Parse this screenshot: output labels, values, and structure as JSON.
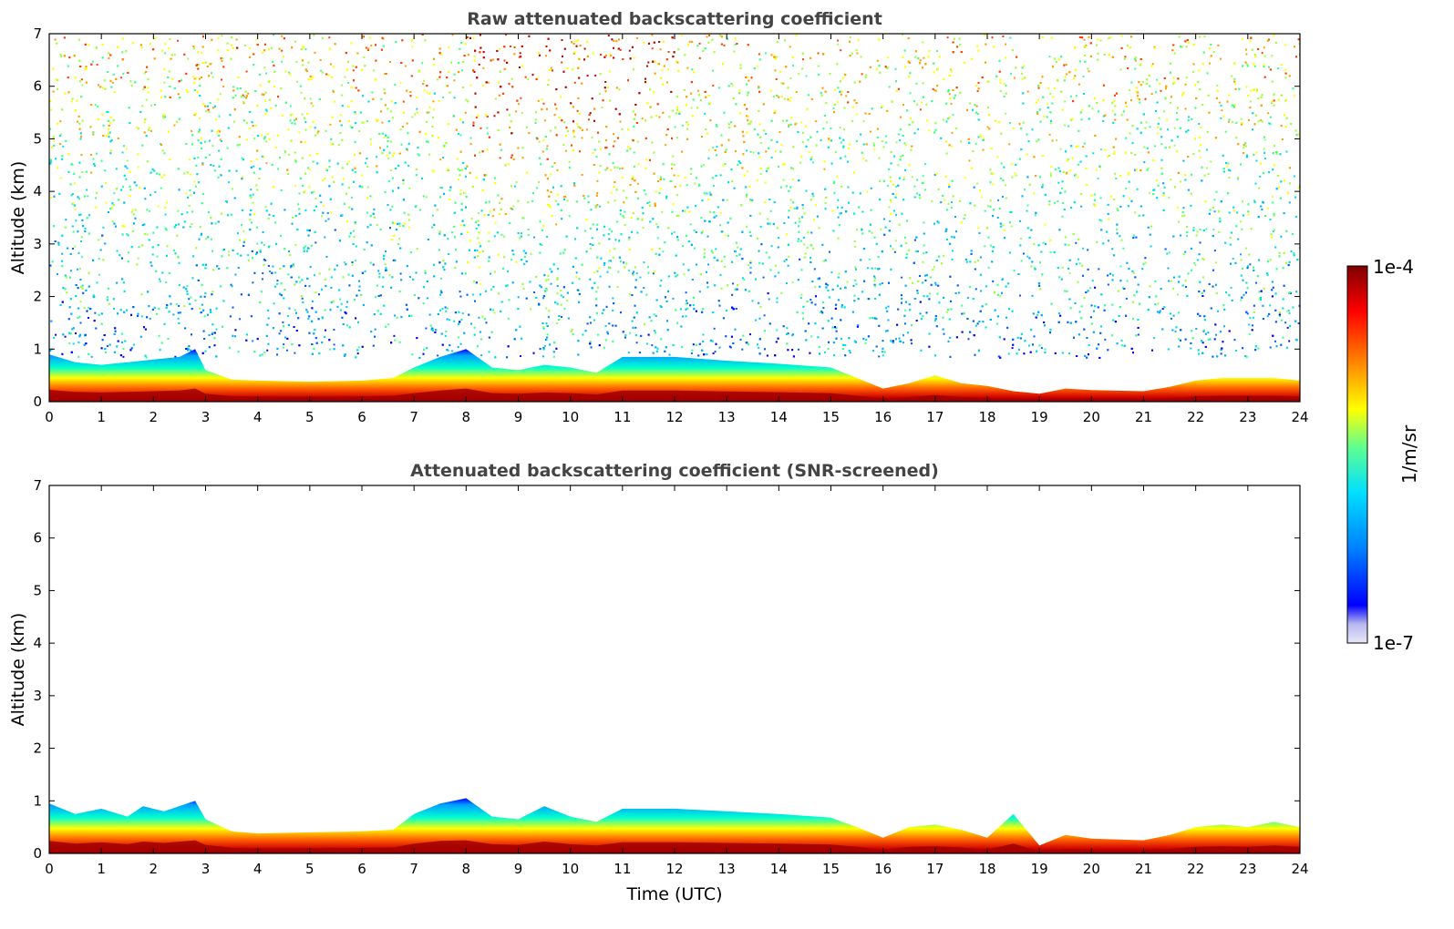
{
  "chart_data": [
    {
      "type": "heatmap",
      "title": "Raw attenuated backscattering coefficient",
      "ylabel": "Altitude (km)",
      "xlabel": "",
      "xlim": [
        0,
        24
      ],
      "ylim": [
        0,
        7
      ],
      "xticks": [
        "0",
        "1",
        "2",
        "3",
        "4",
        "5",
        "6",
        "7",
        "8",
        "9",
        "10",
        "11",
        "12",
        "13",
        "14",
        "15",
        "16",
        "17",
        "18",
        "19",
        "20",
        "21",
        "22",
        "23",
        "24"
      ],
      "yticks": [
        "0",
        "1",
        "2",
        "3",
        "4",
        "5",
        "6",
        "7"
      ],
      "boundary_layer_top_km": [
        [
          0,
          0.9
        ],
        [
          0.5,
          0.75
        ],
        [
          1,
          0.7
        ],
        [
          1.5,
          0.75
        ],
        [
          2,
          0.8
        ],
        [
          2.5,
          0.85
        ],
        [
          2.8,
          1.0
        ],
        [
          3,
          0.6
        ],
        [
          3.5,
          0.42
        ],
        [
          4,
          0.4
        ],
        [
          5,
          0.38
        ],
        [
          6,
          0.4
        ],
        [
          6.6,
          0.45
        ],
        [
          7,
          0.65
        ],
        [
          7.5,
          0.85
        ],
        [
          8,
          1.0
        ],
        [
          8.5,
          0.65
        ],
        [
          9,
          0.6
        ],
        [
          9.5,
          0.7
        ],
        [
          10,
          0.65
        ],
        [
          10.5,
          0.55
        ],
        [
          11,
          0.85
        ],
        [
          12,
          0.85
        ],
        [
          13,
          0.78
        ],
        [
          14,
          0.72
        ],
        [
          15,
          0.65
        ],
        [
          15.5,
          0.45
        ],
        [
          16,
          0.25
        ],
        [
          16.5,
          0.35
        ],
        [
          17,
          0.5
        ],
        [
          17.5,
          0.35
        ],
        [
          18,
          0.3
        ],
        [
          18.5,
          0.2
        ],
        [
          19,
          0.15
        ],
        [
          19.5,
          0.25
        ],
        [
          20,
          0.22
        ],
        [
          21,
          0.2
        ],
        [
          21.5,
          0.28
        ],
        [
          22,
          0.4
        ],
        [
          22.5,
          0.45
        ],
        [
          23,
          0.45
        ],
        [
          23.5,
          0.45
        ],
        [
          24,
          0.4
        ]
      ],
      "noise_lower_limit_km": 1.0,
      "noise_strongest_hours": [
        8,
        12
      ]
    },
    {
      "type": "heatmap",
      "title": "Attenuated backscattering coefficient (SNR-screened)",
      "ylabel": "Altitude (km)",
      "xlabel": "Time (UTC)",
      "xlim": [
        0,
        24
      ],
      "ylim": [
        0,
        7
      ],
      "xticks": [
        "0",
        "1",
        "2",
        "3",
        "4",
        "5",
        "6",
        "7",
        "8",
        "9",
        "10",
        "11",
        "12",
        "13",
        "14",
        "15",
        "16",
        "17",
        "18",
        "19",
        "20",
        "21",
        "22",
        "23",
        "24"
      ],
      "yticks": [
        "0",
        "1",
        "2",
        "3",
        "4",
        "5",
        "6",
        "7"
      ],
      "boundary_layer_top_km": [
        [
          0,
          0.95
        ],
        [
          0.5,
          0.75
        ],
        [
          1,
          0.85
        ],
        [
          1.5,
          0.7
        ],
        [
          1.8,
          0.9
        ],
        [
          2.2,
          0.8
        ],
        [
          2.8,
          1.0
        ],
        [
          3,
          0.65
        ],
        [
          3.5,
          0.42
        ],
        [
          4,
          0.38
        ],
        [
          5,
          0.4
        ],
        [
          6,
          0.42
        ],
        [
          6.6,
          0.45
        ],
        [
          7,
          0.75
        ],
        [
          7.5,
          0.95
        ],
        [
          8,
          1.05
        ],
        [
          8.5,
          0.7
        ],
        [
          9,
          0.65
        ],
        [
          9.5,
          0.9
        ],
        [
          10,
          0.7
        ],
        [
          10.5,
          0.6
        ],
        [
          11,
          0.85
        ],
        [
          12,
          0.85
        ],
        [
          13,
          0.8
        ],
        [
          14,
          0.75
        ],
        [
          15,
          0.68
        ],
        [
          15.5,
          0.5
        ],
        [
          16,
          0.3
        ],
        [
          16.5,
          0.5
        ],
        [
          17,
          0.55
        ],
        [
          17.5,
          0.45
        ],
        [
          18,
          0.3
        ],
        [
          18.5,
          0.75
        ],
        [
          19,
          0.15
        ],
        [
          19.5,
          0.35
        ],
        [
          20,
          0.28
        ],
        [
          21,
          0.25
        ],
        [
          21.5,
          0.35
        ],
        [
          22,
          0.5
        ],
        [
          22.5,
          0.55
        ],
        [
          23,
          0.5
        ],
        [
          23.5,
          0.6
        ],
        [
          24,
          0.5
        ]
      ]
    }
  ],
  "colorbar": {
    "max_label": "1e-4",
    "min_label": "1e-7",
    "unit_label": "1/m/sr",
    "colormap": "jet",
    "colors": [
      "#e8e8f8",
      "#b8b8f0",
      "#0000ff",
      "#0080ff",
      "#00ffff",
      "#80ff80",
      "#ffff00",
      "#ff8000",
      "#ff0000",
      "#800000"
    ]
  }
}
